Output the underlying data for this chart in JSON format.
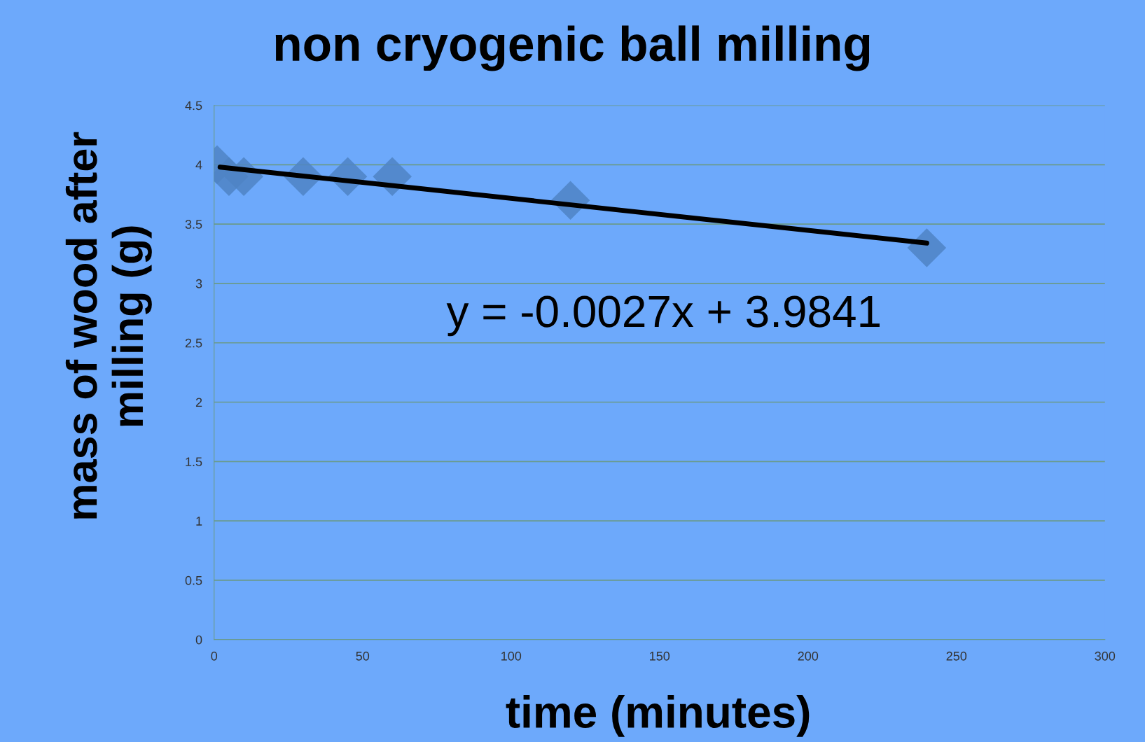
{
  "chart_data": {
    "type": "scatter",
    "title": "non cryogenic ball milling",
    "xlabel": "time (minutes)",
    "ylabel": "mass of wood after\nmilling (g)",
    "series": [
      {
        "color": "#4f84c4",
        "x": [
          1,
          5,
          10,
          30,
          45,
          60,
          120,
          240
        ],
        "values": [
          4.0,
          3.9,
          3.9,
          3.9,
          3.9,
          3.9,
          3.7,
          3.3
        ],
        "marker": "diamond"
      },
      {
        "type": "line",
        "color": "#000000",
        "x": [
          2,
          240
        ],
        "values": [
          3.98,
          3.34
        ],
        "marker": "none",
        "line_style": "solid"
      }
    ],
    "annotations": [
      "y = -0.0027x + 3.9841"
    ],
    "xlim": [
      0,
      300
    ],
    "xticks": [
      0,
      50,
      100,
      150,
      200,
      250,
      300
    ],
    "ylim": [
      0,
      4.5
    ],
    "yticks": [
      0,
      0.5,
      1,
      1.5,
      2,
      2.5,
      3,
      3.5,
      4,
      4.5
    ],
    "grid": "y",
    "legend": false
  }
}
